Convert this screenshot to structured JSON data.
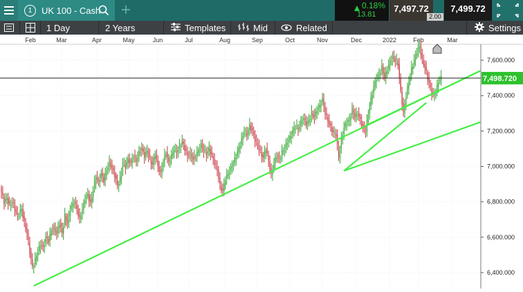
{
  "instrument": {
    "number": "1",
    "name": "UK 100 - Cash"
  },
  "quote": {
    "change_pct": "0.18%",
    "change_abs": "13.81",
    "sell": "7,497.72",
    "buy": "7,499.72",
    "spread": "2.00"
  },
  "toolbar": {
    "interval": "1 Day",
    "range": "2 Years",
    "templates": "Templates",
    "price_type": "Mid",
    "related": "Related",
    "settings": "Settings"
  },
  "chart_data": {
    "type": "candlestick",
    "x_labels": [
      "Feb",
      "Mar",
      "Apr",
      "May",
      "Jun",
      "Jul",
      "Aug",
      "Sep",
      "Oct",
      "Nov",
      "Dec",
      "2022",
      "Feb",
      "Mar"
    ],
    "y_ticks": [
      "7,600.000",
      "7,400.000",
      "7,200.000",
      "7,000.000",
      "6,800.000",
      "6,600.000",
      "6,400.000"
    ],
    "ylim": [
      6310,
      7690
    ],
    "current_price_label": "7,498.720",
    "current_price": 7498.72,
    "series_path": [
      [
        0,
        6880
      ],
      [
        3,
        6800
      ],
      [
        5,
        6820
      ],
      [
        7,
        6780
      ],
      [
        9,
        6800
      ],
      [
        11,
        6760
      ],
      [
        13,
        6720
      ],
      [
        16,
        6760
      ],
      [
        18,
        6680
      ],
      [
        20,
        6620
      ],
      [
        22,
        6520
      ],
      [
        24,
        6430
      ],
      [
        26,
        6470
      ],
      [
        28,
        6520
      ],
      [
        30,
        6560
      ],
      [
        32,
        6540
      ],
      [
        34,
        6600
      ],
      [
        36,
        6580
      ],
      [
        38,
        6640
      ],
      [
        40,
        6650
      ],
      [
        42,
        6620
      ],
      [
        44,
        6680
      ],
      [
        46,
        6620
      ],
      [
        48,
        6720
      ],
      [
        50,
        6680
      ],
      [
        52,
        6760
      ],
      [
        55,
        6800
      ],
      [
        57,
        6760
      ],
      [
        59,
        6700
      ],
      [
        61,
        6760
      ],
      [
        63,
        6820
      ],
      [
        65,
        6840
      ],
      [
        67,
        6790
      ],
      [
        69,
        6870
      ],
      [
        71,
        6940
      ],
      [
        73,
        6910
      ],
      [
        75,
        6960
      ],
      [
        77,
        6920
      ],
      [
        79,
        6980
      ],
      [
        81,
        7020
      ],
      [
        83,
        6990
      ],
      [
        85,
        6950
      ],
      [
        87,
        6890
      ],
      [
        89,
        6930
      ],
      [
        91,
        7020
      ],
      [
        93,
        7000
      ],
      [
        95,
        7040
      ],
      [
        97,
        7020
      ],
      [
        99,
        7060
      ],
      [
        101,
        7030
      ],
      [
        103,
        7080
      ],
      [
        105,
        7100
      ],
      [
        107,
        7060
      ],
      [
        109,
        7090
      ],
      [
        111,
        7040
      ],
      [
        113,
        7010
      ],
      [
        115,
        7070
      ],
      [
        117,
        7000
      ],
      [
        119,
        6960
      ],
      [
        121,
        7030
      ],
      [
        123,
        7080
      ],
      [
        125,
        7020
      ],
      [
        127,
        7060
      ],
      [
        129,
        7100
      ],
      [
        131,
        7080
      ],
      [
        133,
        7110
      ],
      [
        135,
        7140
      ],
      [
        137,
        7100
      ],
      [
        139,
        7060
      ],
      [
        141,
        7070
      ],
      [
        143,
        7040
      ],
      [
        145,
        7060
      ],
      [
        147,
        7090
      ],
      [
        149,
        7120
      ],
      [
        151,
        7090
      ],
      [
        153,
        7070
      ],
      [
        155,
        7100
      ],
      [
        157,
        7060
      ],
      [
        159,
        7020
      ],
      [
        161,
        6980
      ],
      [
        163,
        6890
      ],
      [
        165,
        6860
      ],
      [
        167,
        6930
      ],
      [
        169,
        6960
      ],
      [
        171,
        6990
      ],
      [
        173,
        7020
      ],
      [
        175,
        7060
      ],
      [
        177,
        7100
      ],
      [
        179,
        7150
      ],
      [
        181,
        7200
      ],
      [
        183,
        7180
      ],
      [
        185,
        7230
      ],
      [
        187,
        7200
      ],
      [
        189,
        7150
      ],
      [
        191,
        7120
      ],
      [
        193,
        7080
      ],
      [
        195,
        7050
      ],
      [
        197,
        7100
      ],
      [
        199,
        7030
      ],
      [
        201,
        6950
      ],
      [
        203,
        7020
      ],
      [
        205,
        7060
      ],
      [
        207,
        7040
      ],
      [
        209,
        7080
      ],
      [
        211,
        7100
      ],
      [
        213,
        7140
      ],
      [
        215,
        7160
      ],
      [
        217,
        7200
      ],
      [
        219,
        7230
      ],
      [
        221,
        7210
      ],
      [
        223,
        7250
      ],
      [
        225,
        7270
      ],
      [
        227,
        7240
      ],
      [
        229,
        7260
      ],
      [
        231,
        7300
      ],
      [
        233,
        7280
      ],
      [
        235,
        7320
      ],
      [
        237,
        7340
      ],
      [
        239,
        7380
      ],
      [
        241,
        7300
      ],
      [
        243,
        7260
      ],
      [
        245,
        7220
      ],
      [
        247,
        7190
      ],
      [
        249,
        7180
      ],
      [
        251,
        7050
      ],
      [
        253,
        7150
      ],
      [
        255,
        7220
      ],
      [
        257,
        7250
      ],
      [
        259,
        7260
      ],
      [
        261,
        7320
      ],
      [
        263,
        7280
      ],
      [
        265,
        7300
      ],
      [
        267,
        7260
      ],
      [
        269,
        7220
      ],
      [
        271,
        7200
      ],
      [
        273,
        7300
      ],
      [
        275,
        7380
      ],
      [
        277,
        7450
      ],
      [
        279,
        7500
      ],
      [
        281,
        7520
      ],
      [
        283,
        7560
      ],
      [
        285,
        7500
      ],
      [
        287,
        7550
      ],
      [
        289,
        7590
      ],
      [
        291,
        7620
      ],
      [
        293,
        7600
      ],
      [
        295,
        7580
      ],
      [
        297,
        7420
      ],
      [
        299,
        7300
      ],
      [
        301,
        7400
      ],
      [
        303,
        7480
      ],
      [
        305,
        7550
      ],
      [
        307,
        7600
      ],
      [
        309,
        7650
      ],
      [
        311,
        7680
      ],
      [
        313,
        7600
      ],
      [
        315,
        7560
      ],
      [
        317,
        7500
      ],
      [
        319,
        7440
      ],
      [
        321,
        7400
      ],
      [
        323,
        7420
      ],
      [
        325,
        7480
      ],
      [
        327,
        7500
      ]
    ],
    "trendlines": [
      {
        "from": [
          24,
          6325
        ],
        "to": [
          355,
          7540
        ]
      },
      {
        "from": [
          254,
          6975
        ],
        "to": [
          355,
          7250
        ]
      },
      {
        "from": [
          254,
          6975
        ],
        "to": [
          315,
          7360
        ]
      },
      {
        "from": [
          270,
          7230
        ],
        "to": [
          355,
          7540
        ]
      }
    ]
  },
  "colors": {
    "topbar": "#1f6b67",
    "toolbar": "#3e4144",
    "up": "#2aa32a",
    "down": "#c8323c",
    "trend": "#44ee44",
    "price_tag": "#2ec22e",
    "quote_up": "#2ecc40"
  }
}
